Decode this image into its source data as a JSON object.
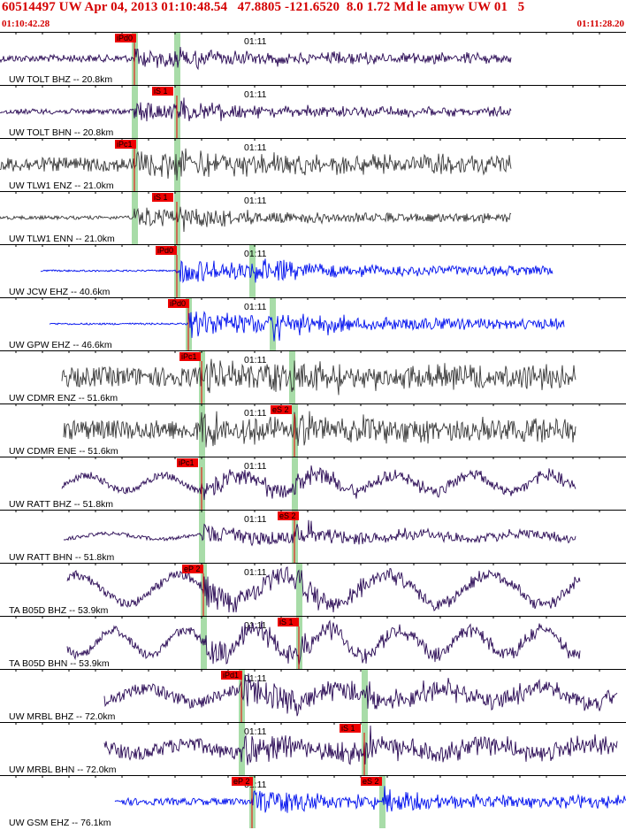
{
  "header": {
    "title": "60514497 UW Apr 04, 2013 01:10:48.54   47.8805 -121.6520  8.0 1.72 Md le amyw UW 01   5",
    "start_time": "01:10:42.28",
    "end_time": "01:11:28.20"
  },
  "chart_data": {
    "type": "line",
    "title": "60514497 UW Apr 04, 2013 01:10:48.54   47.8805 -121.6520  8.0 1.72 Md le amyw UW 01   5",
    "xlabel": "",
    "ylabel": "",
    "x_range": [
      "01:10:42.28",
      "01:11:28.20"
    ],
    "x_tick_label": "01:11",
    "colors": {
      "pick_box": "#ee0000",
      "pick_window": "#a8dca8",
      "trace_purple": "#2a0a55",
      "trace_gray": "#3a3a3a",
      "trace_blue": "#0010ee",
      "header_text": "#d40000",
      "separator": "#000000"
    },
    "traces": [
      {
        "label": "UW TOLT BHZ -- 20.8km",
        "color": "purple",
        "pick": "iPd0",
        "pick2": ""
      },
      {
        "label": "UW TOLT BHN -- 20.8km",
        "color": "purple",
        "pick": "iS 1",
        "pick2": ""
      },
      {
        "label": "UW TLW1 ENZ -- 21.0km",
        "color": "gray",
        "pick": "iPc1",
        "pick2": ""
      },
      {
        "label": "UW TLW1 ENN -- 21.0km",
        "color": "gray",
        "pick": "iS 1",
        "pick2": ""
      },
      {
        "label": "UW JCW EHZ -- 40.6km",
        "color": "blue",
        "pick": "iPd0",
        "pick2": ""
      },
      {
        "label": "UW GPW EHZ -- 46.6km",
        "color": "blue",
        "pick": "iPd0",
        "pick2": ""
      },
      {
        "label": "UW CDMR ENZ -- 51.6km",
        "color": "gray",
        "pick": "iPc1",
        "pick2": ""
      },
      {
        "label": "UW CDMR ENE -- 51.6km",
        "color": "gray",
        "pick": "eS 2",
        "pick2": ""
      },
      {
        "label": "UW RATT BHZ -- 51.8km",
        "color": "purple",
        "pick": "iPc1",
        "pick2": ""
      },
      {
        "label": "UW RATT BHN -- 51.8km",
        "color": "purple",
        "pick": "eS 2",
        "pick2": ""
      },
      {
        "label": "TA B05D BHZ -- 53.9km",
        "color": "purple",
        "pick": "eP 2",
        "pick2": ""
      },
      {
        "label": "TA B05D BHN -- 53.9km",
        "color": "purple",
        "pick": "iS 1",
        "pick2": ""
      },
      {
        "label": "UW MRBL BHZ -- 72.0km",
        "color": "purple",
        "pick": "iPd1",
        "pick2": ""
      },
      {
        "label": "UW MRBL BHN -- 72.0km",
        "color": "purple",
        "pick": "iS 1",
        "pick2": ""
      },
      {
        "label": "UW GSM EHZ -- 76.1km",
        "color": "blue",
        "pick": "eP 2",
        "pick2": "eS 2"
      }
    ]
  }
}
